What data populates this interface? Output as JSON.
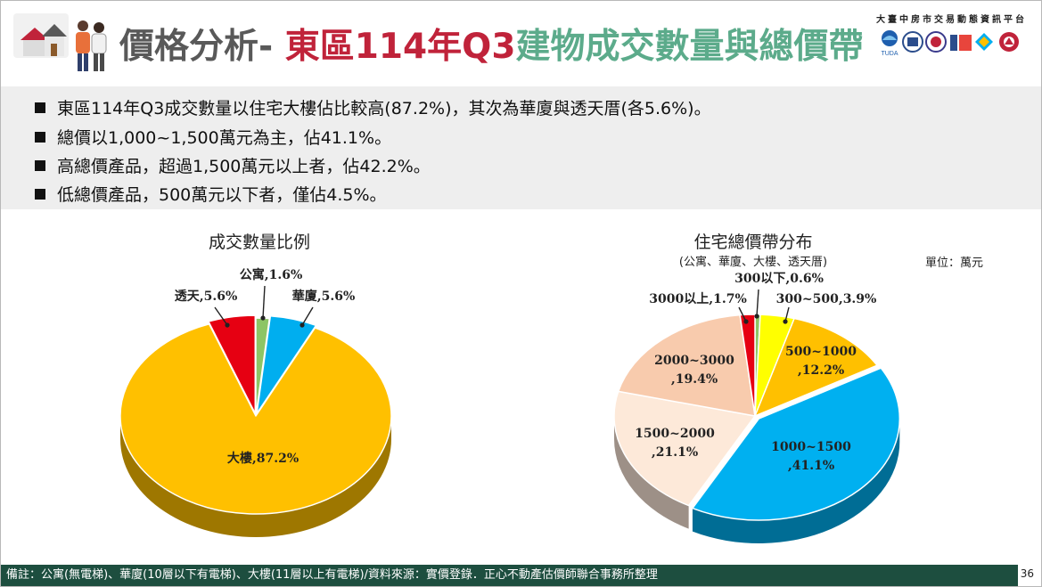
{
  "header": {
    "title_part1": "價格分析- ",
    "title_part2": "東區114年Q3",
    "title_part3": "建物成交數量與總價帶",
    "platform": "大臺中房市交易動態資訊平台",
    "logo_label": "TUDA"
  },
  "summary": {
    "bullets": [
      "東區114年Q3成交數量以住宅大樓佔比較高(87.2%)，其次為華廈與透天厝(各5.6%)。",
      "總價以1,000~1,500萬元為主，佔41.1%。",
      "高總價產品，超過1,500萬元以上者，佔42.2%。",
      "低總價產品，500萬元以下者，僅佔4.5%。"
    ]
  },
  "chart_data": [
    {
      "type": "pie",
      "title": "成交數量比例",
      "slices": [
        {
          "label": "公寓",
          "value": 1.6,
          "color": "#8dc565",
          "text": "公寓,1.6%"
        },
        {
          "label": "華廈",
          "value": 5.6,
          "color": "#00aeef",
          "text": "華廈,5.6%"
        },
        {
          "label": "大樓",
          "value": 87.2,
          "color": "#ffc000",
          "text": "大樓,87.2%"
        },
        {
          "label": "透天",
          "value": 5.6,
          "color": "#e60012",
          "text": "透天,5.6%"
        }
      ]
    },
    {
      "type": "pie",
      "title": "住宅總價帶分布",
      "subtitle": "(公寓、華廈、大樓、透天厝)",
      "unit": "單位：萬元",
      "slices": [
        {
          "label": "300以下",
          "value": 0.6,
          "color": "#8dc565",
          "text": "300以下,0.6%"
        },
        {
          "label": "300~500",
          "value": 3.9,
          "color": "#ffff00",
          "text": "300~500,3.9%"
        },
        {
          "label": "500~1000",
          "value": 12.2,
          "color": "#ffc000",
          "text1": "500~1000",
          "text2": ",12.2%"
        },
        {
          "label": "1000~1500",
          "value": 41.1,
          "color": "#00b0f0",
          "text1": "1000~1500",
          "text2": ",41.1%"
        },
        {
          "label": "1500~2000",
          "value": 21.1,
          "color": "#fde9d9",
          "text1": "1500~2000",
          "text2": ",21.1%"
        },
        {
          "label": "2000~3000",
          "value": 19.4,
          "color": "#f8cbad",
          "text1": "2000~3000",
          "text2": ",19.4%"
        },
        {
          "label": "3000以上",
          "value": 1.7,
          "color": "#e60012",
          "text": "3000以上,1.7%"
        }
      ]
    }
  ],
  "footer": {
    "note": "備註：公寓(無電梯)、華廈(10層以下有電梯)、大樓(11層以上有電梯)/資料來源：實價登錄．正心不動產估價師聯合事務所整理",
    "page": "36"
  }
}
